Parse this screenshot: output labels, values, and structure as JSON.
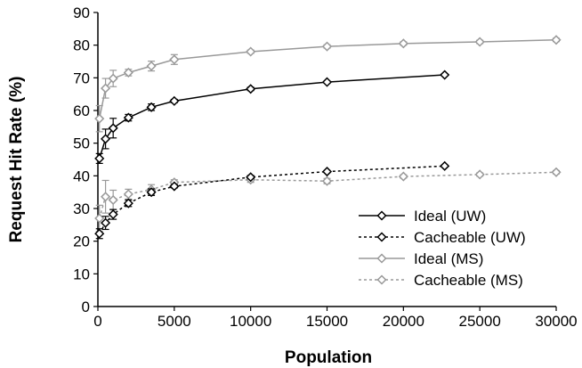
{
  "chart_data": {
    "type": "line",
    "xlabel": "Population",
    "ylabel": "Request Hit Rate (%)",
    "xlim": [
      0,
      30000
    ],
    "ylim": [
      0,
      90
    ],
    "x_ticks": [
      "0",
      "5000",
      "10000",
      "15000",
      "20000",
      "25000",
      "30000"
    ],
    "y_ticks": [
      "0",
      "10",
      "20",
      "30",
      "40",
      "50",
      "60",
      "70",
      "80",
      "90"
    ],
    "grid": false,
    "legend_position": "right",
    "series": [
      {
        "name": "Ideal (UW)",
        "color": "#000000",
        "dashed": false,
        "points": [
          [
            100,
            45.3
          ],
          [
            500,
            51.3
          ],
          [
            1000,
            54.6
          ],
          [
            2000,
            57.8
          ],
          [
            3500,
            61.0
          ],
          [
            5000,
            62.9
          ],
          [
            10000,
            66.6
          ],
          [
            15000,
            68.7
          ],
          [
            22700,
            70.9
          ]
        ],
        "errors": [
          1.5,
          3.0,
          3.0,
          1.0,
          1.0,
          0.5,
          0.5,
          0.3,
          0.3
        ]
      },
      {
        "name": "Cacheable (UW)",
        "color": "#000000",
        "dashed": true,
        "points": [
          [
            100,
            22.3
          ],
          [
            500,
            25.6
          ],
          [
            1000,
            28.2
          ],
          [
            2000,
            31.6
          ],
          [
            3500,
            35.0
          ],
          [
            5000,
            36.8
          ],
          [
            10000,
            39.6
          ],
          [
            15000,
            41.3
          ],
          [
            22700,
            43.0
          ]
        ],
        "errors": [
          1.5,
          2.0,
          1.5,
          1.0,
          1.0,
          0.5,
          0.5,
          0.3,
          0.3
        ]
      },
      {
        "name": "Ideal (MS)",
        "color": "#999999",
        "dashed": false,
        "points": [
          [
            100,
            57.5
          ],
          [
            500,
            66.8
          ],
          [
            1000,
            69.8
          ],
          [
            2000,
            71.6
          ],
          [
            3500,
            73.6
          ],
          [
            5000,
            75.6
          ],
          [
            10000,
            78.0
          ],
          [
            15000,
            79.6
          ],
          [
            20000,
            80.5
          ],
          [
            25000,
            81.0
          ],
          [
            30000,
            81.6
          ]
        ],
        "errors": [
          4.0,
          3.0,
          2.5,
          1.0,
          1.5,
          1.5,
          0.5,
          0.5,
          0.5,
          0.5,
          0.5
        ]
      },
      {
        "name": "Cacheable (MS)",
        "color": "#999999",
        "dashed": true,
        "points": [
          [
            100,
            27.0
          ],
          [
            500,
            33.6
          ],
          [
            1000,
            32.6
          ],
          [
            2000,
            34.4
          ],
          [
            3500,
            35.8
          ],
          [
            5000,
            38.0
          ],
          [
            10000,
            38.8
          ],
          [
            15000,
            38.4
          ],
          [
            20000,
            39.8
          ],
          [
            25000,
            40.4
          ],
          [
            30000,
            41.1
          ]
        ],
        "errors": [
          4.0,
          5.0,
          3.0,
          1.5,
          1.5,
          0.8,
          0.8,
          0.8,
          0.5,
          0.5,
          0.5
        ]
      }
    ]
  }
}
